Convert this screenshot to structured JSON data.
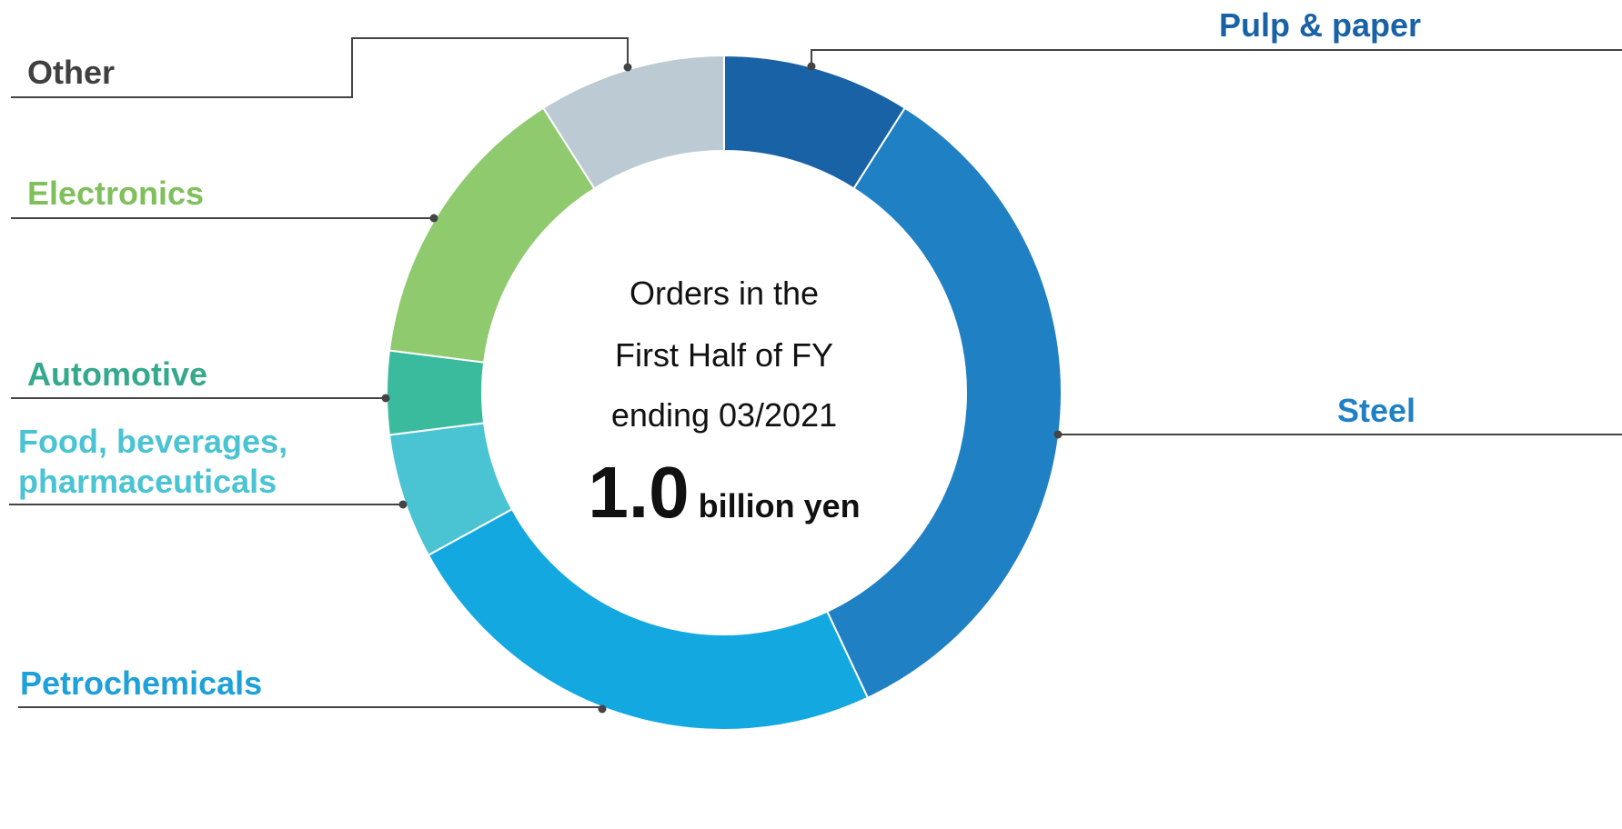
{
  "chart_data": {
    "type": "donut",
    "categories": [
      "Pulp & paper",
      "Steel",
      "Petrochemicals",
      "Food, beverages, pharmaceuticals",
      "Automotive",
      "Electronics",
      "Other"
    ],
    "values": [
      9,
      34,
      24,
      6,
      4,
      14,
      9
    ],
    "colors": [
      "#1a62a6",
      "#2080c4",
      "#14a8e0",
      "#4ac3d3",
      "#3bbb9e",
      "#8fca6e",
      "#bccbd3"
    ],
    "label_colors": [
      "#1a62a6",
      "#2080c4",
      "#1ea0d8",
      "#4ac3d3",
      "#35a98e",
      "#7fc05c",
      "#404040"
    ],
    "center_text": [
      "Orders in the",
      "First Half of FY",
      "ending 03/2021"
    ],
    "center_value": "1.0",
    "center_unit": "billion yen"
  }
}
